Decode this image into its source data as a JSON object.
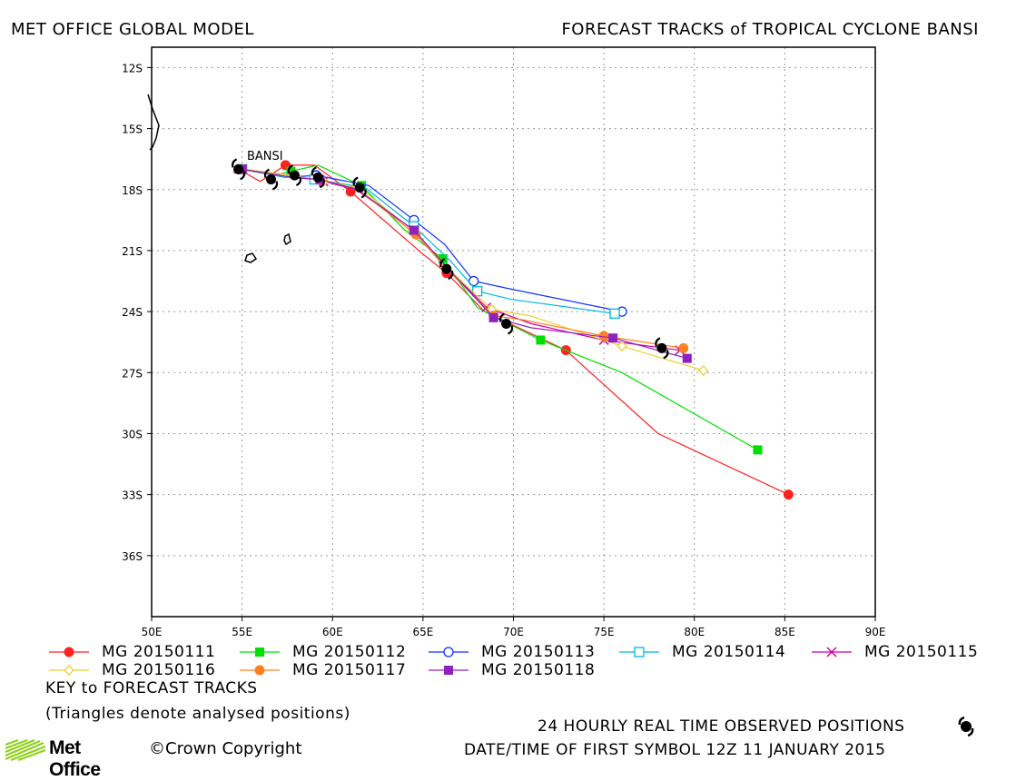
{
  "header": {
    "left_title": "MET OFFICE GLOBAL MODEL",
    "right_title": "FORECAST TRACKS of TROPICAL CYCLONE BANSI"
  },
  "map": {
    "storm_label": "BANSI",
    "lat_labels": [
      "12S",
      "15S",
      "18S",
      "21S",
      "24S",
      "27S",
      "30S",
      "33S",
      "36S"
    ],
    "lon_labels": [
      "50E",
      "55E",
      "60E",
      "65E",
      "70E",
      "75E",
      "80E",
      "85E",
      "90E"
    ],
    "lon_range": [
      50,
      90
    ],
    "lat_range": [
      -39,
      -11
    ],
    "grid": "dotted"
  },
  "chart_data": {
    "type": "line",
    "x_axis": "Longitude (deg E)",
    "y_axis": "Latitude (deg, negative = S)",
    "series": [
      {
        "name": "MG 20150111",
        "color": "#ff2020",
        "marker": "circle-filled",
        "points": [
          [
            54.8,
            -17.0
          ],
          [
            56.0,
            -17.6
          ],
          [
            57.4,
            -16.8
          ],
          [
            59.0,
            -16.8
          ],
          [
            61.0,
            -18.1
          ],
          [
            64.9,
            -21.1
          ],
          [
            66.3,
            -22.1
          ],
          [
            68.4,
            -24.0
          ],
          [
            72.9,
            -25.9
          ],
          [
            78.0,
            -30.0
          ],
          [
            85.2,
            -33.0
          ]
        ]
      },
      {
        "name": "MG 20150112",
        "color": "#00e000",
        "marker": "square-filled",
        "points": [
          [
            55.0,
            -17.0
          ],
          [
            56.8,
            -17.3
          ],
          [
            57.7,
            -17.1
          ],
          [
            59.2,
            -16.8
          ],
          [
            61.6,
            -17.8
          ],
          [
            64.0,
            -20.0
          ],
          [
            66.1,
            -21.4
          ],
          [
            68.0,
            -23.8
          ],
          [
            71.5,
            -25.4
          ],
          [
            76.0,
            -27.0
          ],
          [
            83.5,
            -30.8
          ]
        ]
      },
      {
        "name": "MG 20150113",
        "color": "#1030ff",
        "marker": "circle-open",
        "points": [
          [
            55.0,
            -17.0
          ],
          [
            57.4,
            -17.4
          ],
          [
            59.1,
            -17.3
          ],
          [
            62.0,
            -17.8
          ],
          [
            64.5,
            -19.5
          ],
          [
            66.2,
            -20.7
          ],
          [
            67.8,
            -22.5
          ],
          [
            69.9,
            -22.9
          ],
          [
            76.0,
            -24.0
          ]
        ]
      },
      {
        "name": "MG 20150114",
        "color": "#00b8e0",
        "marker": "square-open",
        "points": [
          [
            55.0,
            -17.0
          ],
          [
            57.5,
            -17.4
          ],
          [
            59.0,
            -17.5
          ],
          [
            61.8,
            -17.9
          ],
          [
            64.5,
            -19.8
          ],
          [
            66.5,
            -21.5
          ],
          [
            68.0,
            -23.0
          ],
          [
            69.9,
            -23.4
          ],
          [
            75.6,
            -24.1
          ]
        ]
      },
      {
        "name": "MG 20150115",
        "color": "#d000a0",
        "marker": "x",
        "points": [
          [
            55.0,
            -17.0
          ],
          [
            57.8,
            -17.3
          ],
          [
            59.5,
            -17.6
          ],
          [
            61.3,
            -18.0
          ],
          [
            64.5,
            -20.0
          ],
          [
            66.3,
            -21.8
          ],
          [
            68.5,
            -23.8
          ],
          [
            71.0,
            -24.6
          ],
          [
            75.0,
            -25.4
          ],
          [
            79.2,
            -25.9
          ]
        ]
      },
      {
        "name": "MG 20150116",
        "color": "#e8d030",
        "marker": "diamond-open",
        "points": [
          [
            55.0,
            -17.0
          ],
          [
            57.8,
            -17.3
          ],
          [
            59.5,
            -17.6
          ],
          [
            61.5,
            -17.9
          ],
          [
            64.4,
            -20.0
          ],
          [
            66.4,
            -21.9
          ],
          [
            68.8,
            -23.9
          ],
          [
            70.9,
            -24.2
          ],
          [
            76.0,
            -25.7
          ],
          [
            80.5,
            -26.9
          ]
        ]
      },
      {
        "name": "MG 20150117",
        "color": "#ff8020",
        "marker": "circle-filled",
        "points": [
          [
            55.0,
            -17.0
          ],
          [
            57.8,
            -17.4
          ],
          [
            59.3,
            -17.5
          ],
          [
            61.4,
            -18.0
          ],
          [
            64.6,
            -20.2
          ],
          [
            66.3,
            -21.9
          ],
          [
            68.9,
            -24.2
          ],
          [
            70.5,
            -24.4
          ],
          [
            75.0,
            -25.2
          ],
          [
            79.4,
            -25.8
          ]
        ]
      },
      {
        "name": "MG 20150118",
        "color": "#9020c0",
        "marker": "square-filled",
        "points": [
          [
            55.0,
            -17.0
          ],
          [
            57.8,
            -17.4
          ],
          [
            59.3,
            -17.5
          ],
          [
            61.4,
            -18.0
          ],
          [
            64.5,
            -20.0
          ],
          [
            66.4,
            -21.9
          ],
          [
            68.9,
            -24.3
          ],
          [
            71.0,
            -24.8
          ],
          [
            75.5,
            -25.3
          ],
          [
            79.6,
            -26.3
          ]
        ]
      }
    ],
    "observed_positions": [
      [
        54.8,
        -17.0
      ],
      [
        56.6,
        -17.5
      ],
      [
        57.9,
        -17.3
      ],
      [
        59.2,
        -17.4
      ],
      [
        61.5,
        -17.9
      ],
      [
        66.3,
        -21.9
      ],
      [
        69.6,
        -24.6
      ],
      [
        78.2,
        -25.8
      ]
    ]
  },
  "legend": {
    "items": [
      {
        "label": "MG 20150111",
        "color": "#ff2020",
        "marker": "circle-filled"
      },
      {
        "label": "MG 20150112",
        "color": "#00e000",
        "marker": "square-filled"
      },
      {
        "label": "MG 20150113",
        "color": "#1030ff",
        "marker": "circle-open"
      },
      {
        "label": "MG 20150114",
        "color": "#00b8e0",
        "marker": "square-open"
      },
      {
        "label": "MG 20150115",
        "color": "#d000a0",
        "marker": "x"
      },
      {
        "label": "MG 20150116",
        "color": "#e8d030",
        "marker": "diamond-open"
      },
      {
        "label": "MG 20150117",
        "color": "#ff8020",
        "marker": "circle-filled"
      },
      {
        "label": "MG 20150118",
        "color": "#9020c0",
        "marker": "square-filled"
      }
    ],
    "key_title": "KEY to FORECAST TRACKS",
    "key_note": "(Triangles denote analysed positions)",
    "observed_note": "24 HOURLY REAL TIME OBSERVED POSITIONS",
    "date_note": "DATE/TIME OF FIRST SYMBOL 12Z 11 JANUARY 2015"
  },
  "brand": {
    "name": "Met Office",
    "copyright": "©Crown Copyright"
  }
}
